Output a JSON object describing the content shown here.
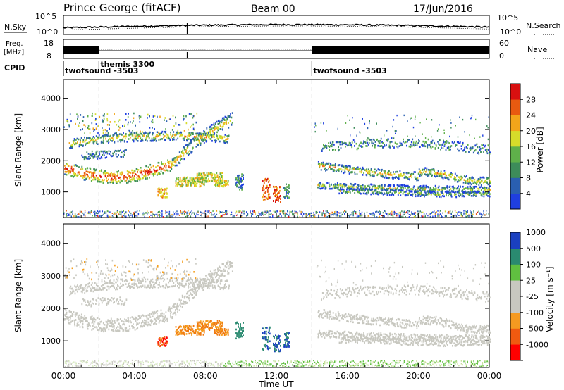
{
  "header": {
    "station": "Prince George (fitACF)",
    "beam": "Beam 00",
    "date": "17/Jun/2016"
  },
  "colors": {
    "power_scale": [
      "#1f3fe0",
      "#2a5fb0",
      "#3d8c5a",
      "#5fb04a",
      "#d6dc2a",
      "#f3a51a",
      "#e85a10",
      "#d81010"
    ],
    "velocity_scale": [
      "#ff0000",
      "#f05a10",
      "#f59a20",
      "#c8c8c0",
      "#c8c8c0",
      "#60c040",
      "#2a8a70",
      "#1a40c0"
    ],
    "scatter_grey": "#c8c8c0"
  },
  "chart_data": [
    {
      "type": "line",
      "name": "noise-panel",
      "left_label": "N.Sky",
      "left_ticks": [
        "10^5",
        "10^0"
      ],
      "right_label": "N.Search",
      "right_ticks": [
        "10^5",
        "10^0"
      ]
    },
    {
      "type": "line",
      "name": "frequency-panel",
      "left_label_1": "Freq.",
      "left_label_2": "[MHz]",
      "left_ticks": [
        "18",
        "8"
      ],
      "right_label": "Nave",
      "right_ticks": [
        "60",
        "0"
      ]
    },
    {
      "type": "table",
      "name": "cpid-panel",
      "label": "CPID",
      "segments": [
        {
          "start": 0,
          "end": 2,
          "label": "twofsound -3503"
        },
        {
          "start": 2,
          "end": 14,
          "label": "themis 3300"
        },
        {
          "start": 14,
          "end": 24,
          "label": "twofsound -3503"
        }
      ]
    },
    {
      "type": "heatmap",
      "name": "power-panel",
      "ylabel": "Slant Range [km]",
      "yticks": [
        1000,
        2000,
        3000,
        4000
      ],
      "ylim": [
        180,
        4600
      ],
      "colorbar_label": "Power [dB]",
      "colorbar_ticks": [
        4,
        8,
        12,
        16,
        20,
        24,
        28
      ]
    },
    {
      "type": "heatmap",
      "name": "velocity-panel",
      "ylabel": "Slant Range [km]",
      "yticks": [
        1000,
        2000,
        3000,
        4000
      ],
      "ylim": [
        180,
        4600
      ],
      "colorbar_label": "Velocity [m s⁻¹]",
      "colorbar_ticks": [
        -1000,
        -500,
        -100,
        -25,
        25,
        100,
        500,
        1000
      ]
    }
  ],
  "time_axis": {
    "xlabel": "Time UT",
    "xlim": [
      0,
      24
    ],
    "ticks": [
      "00:00",
      "04:00",
      "08:00",
      "12:00",
      "16:00",
      "20:00",
      "00:00"
    ]
  }
}
